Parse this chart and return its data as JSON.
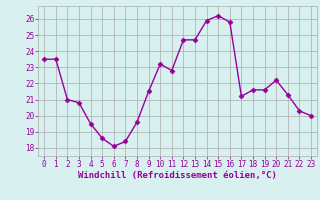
{
  "x": [
    0,
    1,
    2,
    3,
    4,
    5,
    6,
    7,
    8,
    9,
    10,
    11,
    12,
    13,
    14,
    15,
    16,
    17,
    18,
    19,
    20,
    21,
    22,
    23
  ],
  "y": [
    23.5,
    23.5,
    21.0,
    20.8,
    19.5,
    18.6,
    18.1,
    18.4,
    19.6,
    21.5,
    23.2,
    22.8,
    24.7,
    24.7,
    25.9,
    26.2,
    25.8,
    21.2,
    21.6,
    21.6,
    22.2,
    21.3,
    20.3,
    20.0
  ],
  "line_color": "#990099",
  "marker": "D",
  "marker_size": 2.5,
  "bg_color": "#d8f0f0",
  "grid_color": "#aaaaaa",
  "xlabel": "Windchill (Refroidissement éolien,°C)",
  "xlabel_color": "#990099",
  "ylim": [
    17.5,
    26.8
  ],
  "xlim": [
    -0.5,
    23.5
  ],
  "yticks": [
    18,
    19,
    20,
    21,
    22,
    23,
    24,
    25,
    26
  ],
  "xticks": [
    0,
    1,
    2,
    3,
    4,
    5,
    6,
    7,
    8,
    9,
    10,
    11,
    12,
    13,
    14,
    15,
    16,
    17,
    18,
    19,
    20,
    21,
    22,
    23
  ],
  "tick_label_color": "#990099",
  "tick_label_size": 5.5,
  "xlabel_size": 6.5,
  "line_width": 1.0
}
